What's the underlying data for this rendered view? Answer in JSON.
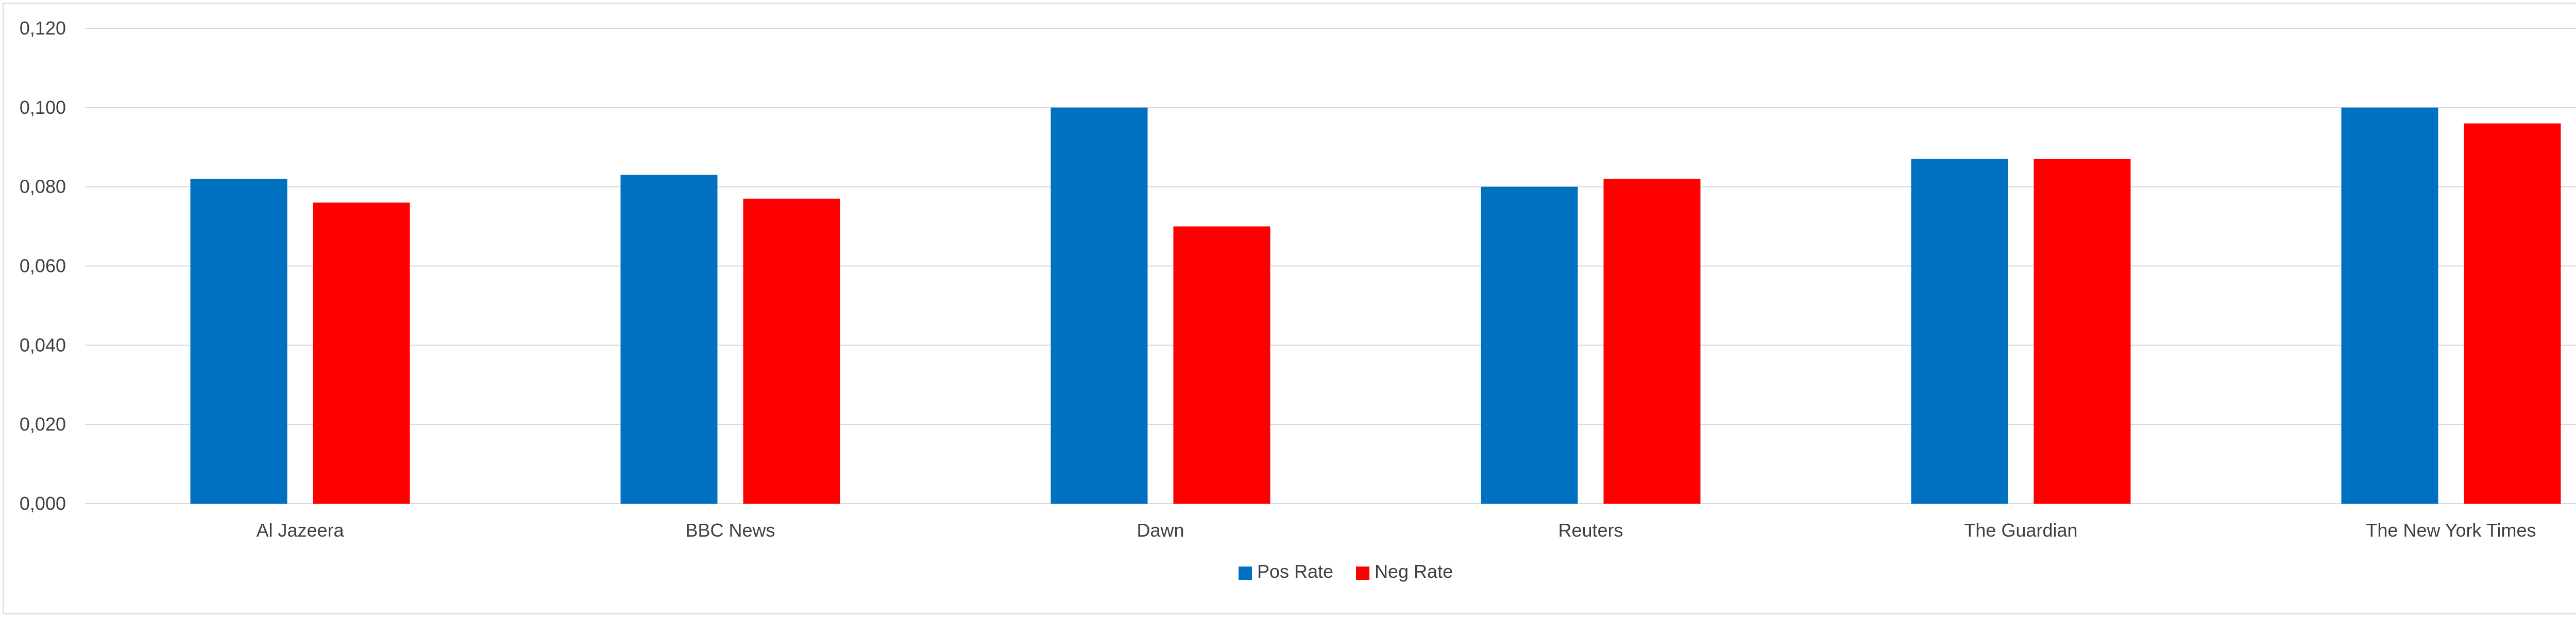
{
  "chart_data": {
    "type": "bar",
    "categories": [
      "Al Jazeera",
      "BBC News",
      "Dawn",
      "Reuters",
      "The Guardian",
      "The New York Times"
    ],
    "series": [
      {
        "name": "Pos Rate",
        "color": "#0070C0",
        "values": [
          0.082,
          0.083,
          0.1,
          0.08,
          0.087,
          0.1
        ]
      },
      {
        "name": "Neg Rate",
        "color": "#FF0000",
        "values": [
          0.076,
          0.077,
          0.07,
          0.082,
          0.087,
          0.096
        ]
      }
    ],
    "yticks": [
      "0,000",
      "0,020",
      "0,040",
      "0,060",
      "0,080",
      "0,100",
      "0,120"
    ],
    "ylim": [
      0,
      0.12
    ],
    "ytick_values": [
      0,
      0.02,
      0.04,
      0.06,
      0.08,
      0.1,
      0.12
    ],
    "grid": true,
    "legend": "bottom-center"
  }
}
